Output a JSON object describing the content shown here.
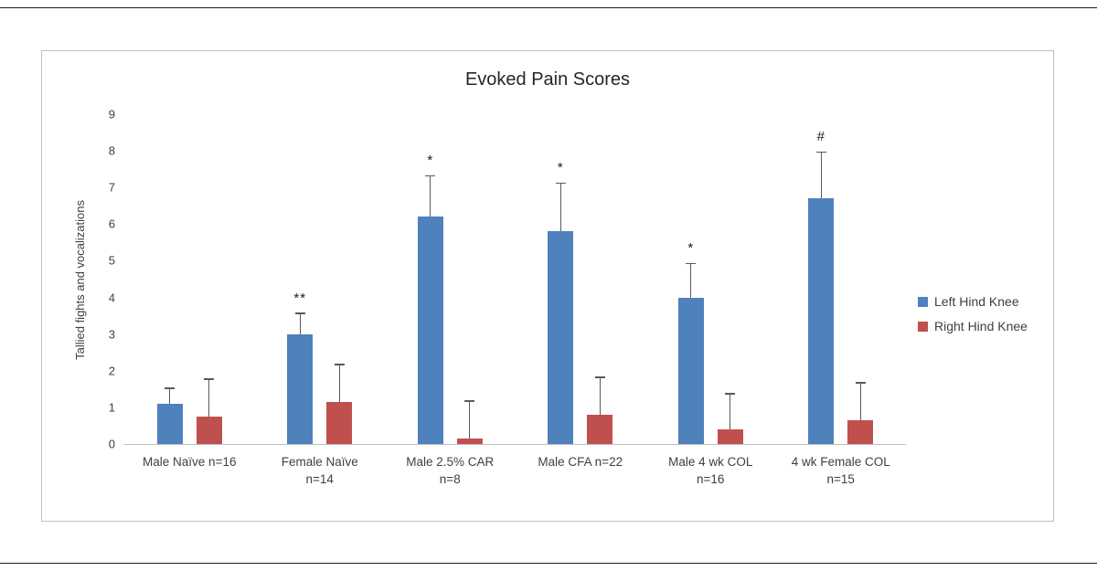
{
  "page": {
    "background_color": "#FFFFFF",
    "frame_border_color": "#BFBFBF"
  },
  "chart_data": {
    "type": "bar",
    "title": "Evoked Pain Scores",
    "xlabel": "",
    "ylabel": "Tallied fights and vocalizations",
    "ylim": [
      0,
      9
    ],
    "yticks": [
      0,
      1,
      2,
      3,
      4,
      5,
      6,
      7,
      8,
      9
    ],
    "grid": false,
    "legend_position": "right",
    "error_bar_color": "#595959",
    "categories": [
      "Male Naïve n=16",
      "Female Naïve n=14",
      "Male 2.5% CAR n=8",
      "Male CFA n=22",
      "Male 4 wk COL n=16",
      "4 wk Female COL n=15"
    ],
    "category_label_lines": [
      [
        "Male Naïve n=16"
      ],
      [
        "Female Naïve",
        "n=14"
      ],
      [
        "Male 2.5% CAR",
        "n=8"
      ],
      [
        "Male CFA n=22"
      ],
      [
        "Male 4 wk COL",
        "n=16"
      ],
      [
        "4 wk Female COL",
        "n=15"
      ]
    ],
    "series": [
      {
        "name": "Left Hind Knee",
        "color": "#4F81BD",
        "values": [
          1.1,
          3.0,
          6.2,
          5.8,
          4.0,
          6.7
        ],
        "error_plus": [
          0.4,
          0.55,
          1.1,
          1.3,
          0.9,
          1.25
        ],
        "annotations": [
          "",
          "**",
          "*",
          "*",
          "*",
          "#"
        ]
      },
      {
        "name": "Right Hind Knee",
        "color": "#C0504D",
        "values": [
          0.75,
          1.15,
          0.15,
          0.8,
          0.4,
          0.65
        ],
        "error_plus": [
          1.0,
          1.0,
          1.0,
          1.0,
          0.95,
          1.0
        ],
        "annotations": [
          "",
          "",
          "",
          "",
          "",
          ""
        ]
      }
    ]
  }
}
